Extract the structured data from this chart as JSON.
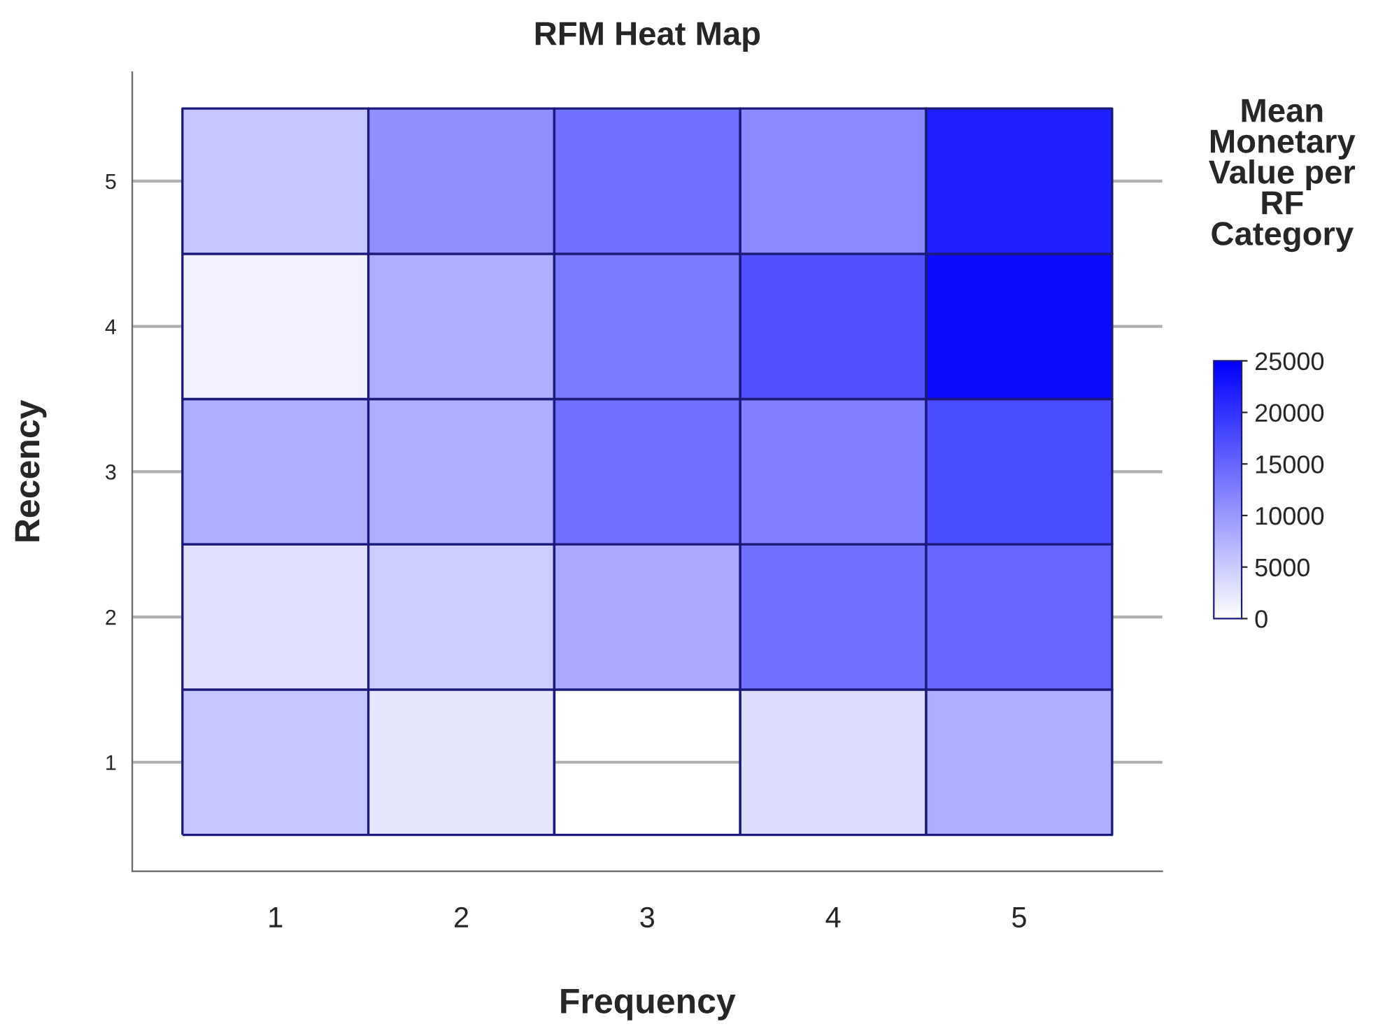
{
  "chart_data": {
    "type": "heatmap",
    "title": "RFM Heat Map",
    "xlabel": "Frequency",
    "ylabel": "Recency",
    "clabel": "Mean\nMonetary\nValue per\nRF\nCategory",
    "categories": [
      "1",
      "2",
      "3",
      "4",
      "5"
    ],
    "y_categories": [
      "5",
      "4",
      "3",
      "2",
      "1"
    ],
    "cells": [
      [
        5500,
        11000,
        14000,
        11500,
        22000
      ],
      [
        1500,
        8000,
        13000,
        17000,
        24000
      ],
      [
        8000,
        8000,
        14000,
        12500,
        17500
      ],
      [
        3000,
        5000,
        8500,
        14000,
        15000
      ],
      [
        5500,
        2500,
        null,
        3500,
        8000
      ]
    ],
    "clim": [
      0,
      25000
    ],
    "cticks": [
      25000,
      20000,
      15000,
      10000,
      5000,
      0
    ],
    "grid": "y"
  }
}
